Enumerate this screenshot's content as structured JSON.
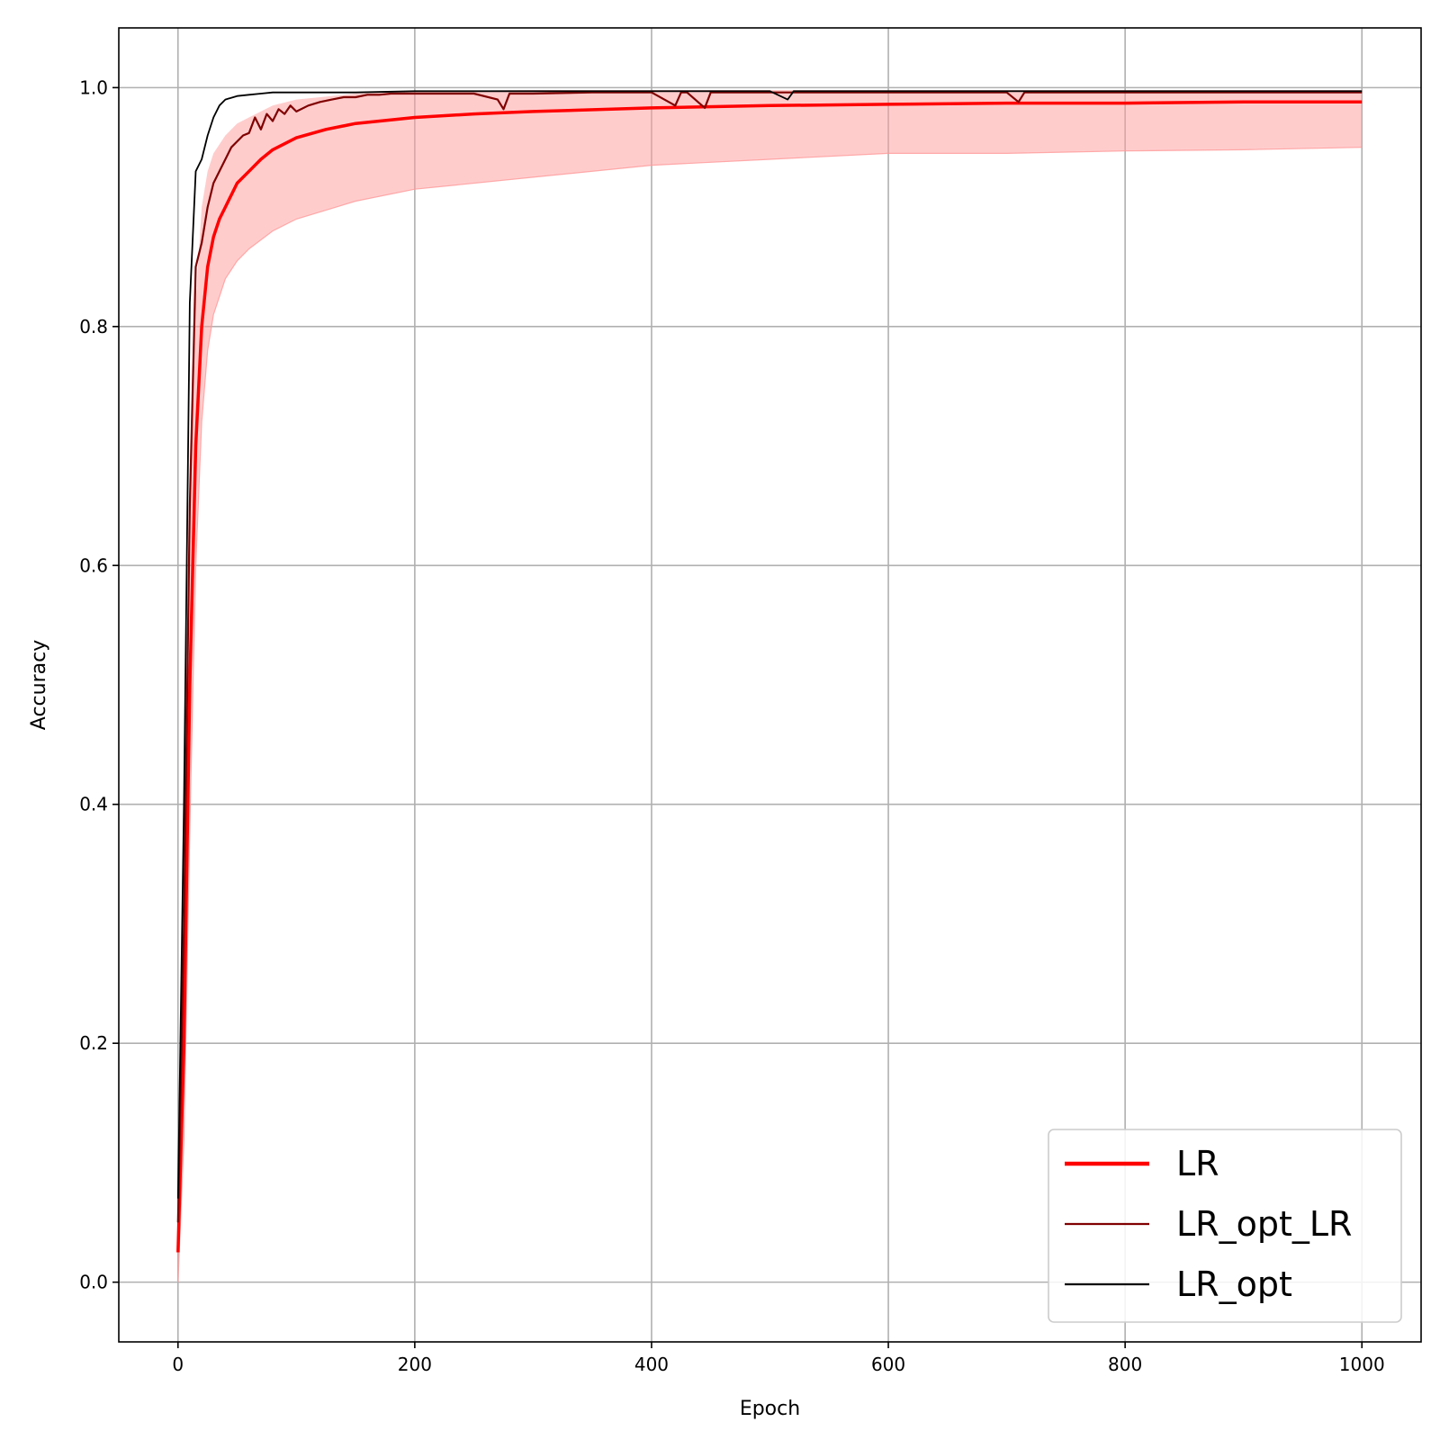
{
  "chart_data": {
    "type": "line",
    "title": "",
    "xlabel": "Epoch",
    "ylabel": "Accuracy",
    "xlim": [
      -50,
      1050
    ],
    "ylim": [
      -0.05,
      1.05
    ],
    "xticks": [
      0,
      200,
      400,
      600,
      800,
      1000
    ],
    "xtick_labels": [
      "0",
      "200",
      "400",
      "600",
      "800",
      "1000"
    ],
    "yticks": [
      0.0,
      0.2,
      0.4,
      0.6,
      0.8,
      1.0
    ],
    "ytick_labels": [
      "0.0",
      "0.2",
      "0.4",
      "0.6",
      "0.8",
      "1.0"
    ],
    "grid": true,
    "legend_position": "bottom-right",
    "band": {
      "color": "#ff9999",
      "x": [
        0,
        5,
        10,
        15,
        20,
        25,
        30,
        40,
        50,
        60,
        80,
        100,
        150,
        200,
        300,
        400,
        500,
        600,
        700,
        800,
        900,
        1000
      ],
      "lower": [
        0.0,
        0.12,
        0.38,
        0.6,
        0.72,
        0.78,
        0.81,
        0.84,
        0.855,
        0.865,
        0.88,
        0.89,
        0.905,
        0.915,
        0.925,
        0.935,
        0.94,
        0.945,
        0.945,
        0.947,
        0.948,
        0.95
      ],
      "upper": [
        0.06,
        0.3,
        0.65,
        0.82,
        0.9,
        0.93,
        0.945,
        0.96,
        0.97,
        0.975,
        0.985,
        0.99,
        0.995,
        0.997,
        0.998,
        0.998,
        0.998,
        0.998,
        0.998,
        0.998,
        0.998,
        0.998
      ]
    },
    "series": [
      {
        "name": "LR",
        "color": "#ff0000",
        "x": [
          0,
          5,
          10,
          15,
          20,
          25,
          30,
          35,
          40,
          50,
          60,
          70,
          80,
          100,
          125,
          150,
          200,
          250,
          300,
          400,
          500,
          600,
          700,
          800,
          900,
          1000
        ],
        "values": [
          0.025,
          0.2,
          0.5,
          0.7,
          0.8,
          0.85,
          0.875,
          0.89,
          0.9,
          0.92,
          0.93,
          0.94,
          0.948,
          0.958,
          0.965,
          0.97,
          0.975,
          0.978,
          0.98,
          0.983,
          0.985,
          0.986,
          0.987,
          0.987,
          0.988,
          0.988
        ]
      },
      {
        "name": "LR_opt_LR",
        "color": "#800000",
        "x": [
          0,
          5,
          10,
          15,
          20,
          25,
          30,
          35,
          40,
          45,
          50,
          55,
          60,
          65,
          70,
          75,
          80,
          85,
          90,
          95,
          100,
          110,
          120,
          130,
          140,
          150,
          160,
          170,
          180,
          200,
          250,
          270,
          275,
          280,
          300,
          350,
          400,
          420,
          425,
          430,
          445,
          450,
          500,
          550,
          600,
          650,
          700,
          710,
          715,
          720,
          800,
          900,
          1000
        ],
        "values": [
          0.05,
          0.3,
          0.65,
          0.85,
          0.87,
          0.9,
          0.92,
          0.93,
          0.94,
          0.95,
          0.955,
          0.96,
          0.962,
          0.975,
          0.965,
          0.978,
          0.972,
          0.982,
          0.978,
          0.985,
          0.98,
          0.985,
          0.988,
          0.99,
          0.992,
          0.992,
          0.994,
          0.994,
          0.995,
          0.995,
          0.995,
          0.99,
          0.982,
          0.995,
          0.995,
          0.996,
          0.996,
          0.985,
          0.996,
          0.996,
          0.983,
          0.996,
          0.996,
          0.996,
          0.996,
          0.996,
          0.996,
          0.988,
          0.996,
          0.996,
          0.996,
          0.996,
          0.996
        ]
      },
      {
        "name": "LR_opt",
        "color": "#000000",
        "x": [
          0,
          5,
          10,
          15,
          20,
          25,
          30,
          35,
          40,
          50,
          60,
          70,
          80,
          100,
          150,
          200,
          300,
          400,
          500,
          515,
          520,
          600,
          700,
          800,
          900,
          1000
        ],
        "values": [
          0.07,
          0.4,
          0.82,
          0.93,
          0.94,
          0.96,
          0.975,
          0.985,
          0.99,
          0.993,
          0.994,
          0.995,
          0.996,
          0.996,
          0.996,
          0.997,
          0.997,
          0.997,
          0.997,
          0.99,
          0.997,
          0.997,
          0.997,
          0.997,
          0.997,
          0.997
        ]
      }
    ]
  }
}
